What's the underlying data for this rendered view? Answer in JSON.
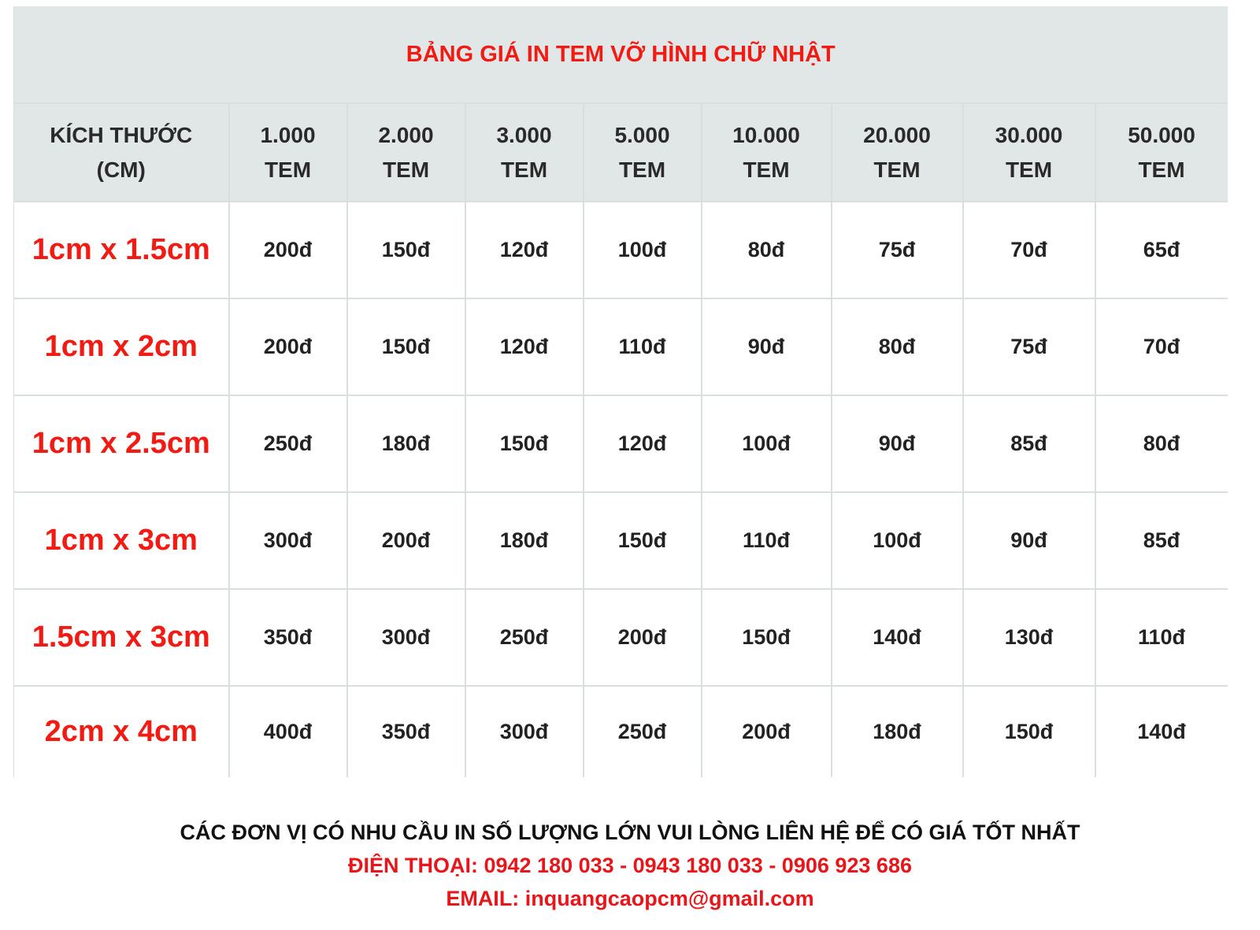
{
  "title": "BẢNG GIÁ IN TEM VỠ HÌNH CHỮ NHẬT",
  "colors": {
    "accent_red": "#f21b14",
    "header_bg": "#e1e6e6",
    "border": "#d9dfdf"
  },
  "table": {
    "size_header": [
      "KÍCH THƯỚC",
      "(CM)"
    ],
    "quantity_headers": [
      [
        "1.000",
        "TEM"
      ],
      [
        "2.000",
        "TEM"
      ],
      [
        "3.000",
        "TEM"
      ],
      [
        "5.000",
        "TEM"
      ],
      [
        "10.000",
        "TEM"
      ],
      [
        "20.000",
        "TEM"
      ],
      [
        "30.000",
        "TEM"
      ],
      [
        "50.000",
        "TEM"
      ]
    ],
    "rows": [
      {
        "size": "1cm x 1.5cm",
        "prices": [
          "200đ",
          "150đ",
          "120đ",
          "100đ",
          "80đ",
          "75đ",
          "70đ",
          "65đ"
        ]
      },
      {
        "size": "1cm x 2cm",
        "prices": [
          "200đ",
          "150đ",
          "120đ",
          "110đ",
          "90đ",
          "80đ",
          "75đ",
          "70đ"
        ]
      },
      {
        "size": "1cm x 2.5cm",
        "prices": [
          "250đ",
          "180đ",
          "150đ",
          "120đ",
          "100đ",
          "90đ",
          "85đ",
          "80đ"
        ]
      },
      {
        "size": "1cm x 3cm",
        "prices": [
          "300đ",
          "200đ",
          "180đ",
          "150đ",
          "110đ",
          "100đ",
          "90đ",
          "85đ"
        ]
      },
      {
        "size": "1.5cm x 3cm",
        "prices": [
          "350đ",
          "300đ",
          "250đ",
          "200đ",
          "150đ",
          "140đ",
          "130đ",
          "110đ"
        ]
      },
      {
        "size": "2cm x 4cm",
        "prices": [
          "400đ",
          "350đ",
          "300đ",
          "250đ",
          "200đ",
          "180đ",
          "150đ",
          "140đ"
        ]
      }
    ]
  },
  "footer": {
    "notice": "CÁC ĐƠN VỊ CÓ NHU CẦU IN SỐ LƯỢNG LỚN VUI LÒNG LIÊN HỆ ĐỂ CÓ GIÁ TỐT NHẤT",
    "phone": "ĐIỆN THOẠI: 0942 180 033 - 0943 180 033 - 0906 923 686",
    "email": "EMAIL: inquangcaopcm@gmail.com"
  }
}
